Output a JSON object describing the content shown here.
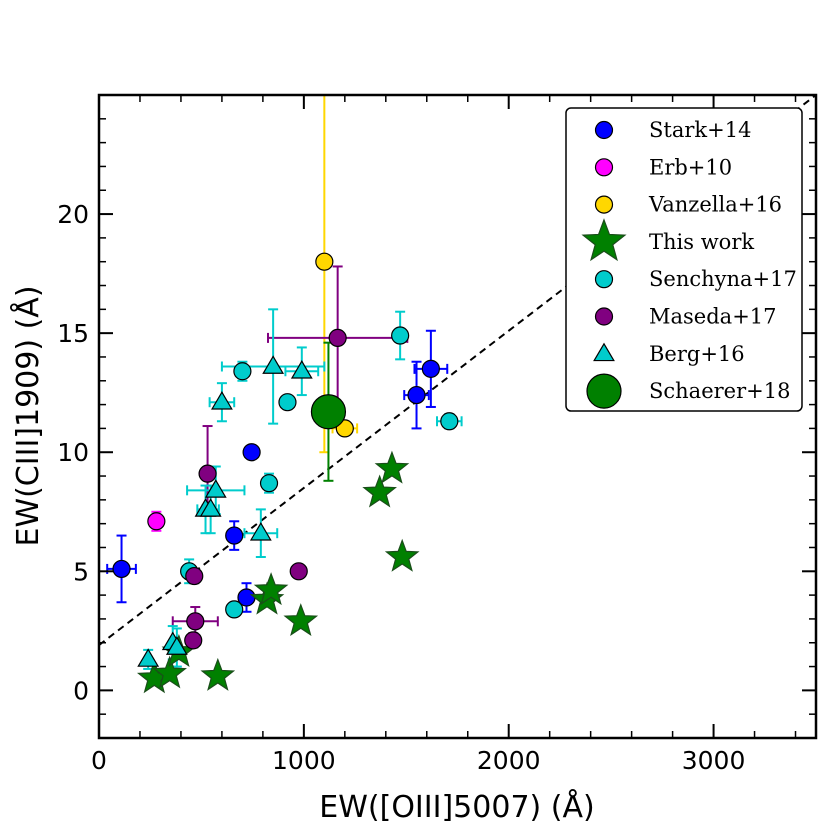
{
  "chart_data": {
    "type": "scatter",
    "xlabel": "EW([OIII]5007) (Å)",
    "ylabel": "EW(CIII]1909) (Å)",
    "xlim": [
      0,
      3500
    ],
    "ylim": [
      -2,
      25
    ],
    "xticks": [
      0,
      1000,
      2000,
      3000
    ],
    "xtick_labels": [
      "0",
      "1000",
      "2000",
      "3000"
    ],
    "yticks": [
      0,
      5,
      10,
      15,
      20
    ],
    "ytick_labels": [
      "0",
      "5",
      "10",
      "15",
      "20"
    ],
    "legend_position": "top-right",
    "reference_line": {
      "style": "dashed",
      "color": "#000000",
      "points": [
        [
          0,
          1.9
        ],
        [
          3500,
          25
        ]
      ]
    },
    "series": [
      {
        "name": "Stark+14",
        "marker": "circle",
        "color": "#0000ff",
        "errcolor": "#0000ff",
        "size": 17,
        "points": [
          {
            "x": 110,
            "y": 5.1,
            "xerr": 70,
            "yerr": [
              1.4,
              1.4
            ]
          },
          {
            "x": 660,
            "y": 6.5,
            "xerr": 0,
            "yerr": [
              0.6,
              0.6
            ]
          },
          {
            "x": 720,
            "y": 3.9,
            "xerr": 0,
            "yerr": [
              0.6,
              0.6
            ]
          },
          {
            "x": 745,
            "y": 10.0,
            "xerr": 0,
            "yerr": [
              0,
              0
            ]
          },
          {
            "x": 1550,
            "y": 12.4,
            "xerr": 60,
            "yerr": [
              1.4,
              1.4
            ]
          },
          {
            "x": 1620,
            "y": 13.5,
            "xerr": 80,
            "yerr": [
              1.6,
              1.6
            ]
          }
        ]
      },
      {
        "name": "Erb+10",
        "marker": "circle",
        "color": "#ff00ff",
        "errcolor": "#ff00ff",
        "size": 17,
        "points": [
          {
            "x": 280,
            "y": 7.1,
            "xerr": 0,
            "yerr": [
              0.4,
              0.4
            ]
          }
        ]
      },
      {
        "name": "Vanzella+16",
        "marker": "circle",
        "color": "#ffd700",
        "errcolor": "#ffd700",
        "size": 17,
        "points": [
          {
            "x": 1100,
            "y": 18.0,
            "xerr": 0,
            "yerr": [
              8.0,
              12.5
            ]
          },
          {
            "x": 1200,
            "y": 11.0,
            "xerr": 60,
            "yerr": [
              0,
              0
            ]
          }
        ]
      },
      {
        "name": "This work",
        "marker": "star",
        "color": "#008000",
        "errcolor": "#008000",
        "size": 30,
        "points": [
          {
            "x": 270,
            "y": 0.5,
            "xerr": 0,
            "yerr": [
              0,
              0
            ]
          },
          {
            "x": 345,
            "y": 0.7,
            "xerr": 0,
            "yerr": [
              0,
              0
            ]
          },
          {
            "x": 390,
            "y": 1.6,
            "xerr": 0,
            "yerr": [
              0,
              0
            ]
          },
          {
            "x": 580,
            "y": 0.6,
            "xerr": 0,
            "yerr": [
              0,
              0
            ]
          },
          {
            "x": 820,
            "y": 3.8,
            "xerr": 0,
            "yerr": [
              0,
              0
            ]
          },
          {
            "x": 840,
            "y": 4.2,
            "xerr": 0,
            "yerr": [
              0,
              0
            ]
          },
          {
            "x": 985,
            "y": 2.9,
            "xerr": 0,
            "yerr": [
              0,
              0
            ]
          },
          {
            "x": 1370,
            "y": 8.3,
            "xerr": 0,
            "yerr": [
              0,
              0
            ]
          },
          {
            "x": 1430,
            "y": 9.3,
            "xerr": 0,
            "yerr": [
              0,
              0
            ]
          },
          {
            "x": 1480,
            "y": 5.6,
            "xerr": 0,
            "yerr": [
              0,
              0
            ]
          }
        ]
      },
      {
        "name": "Senchyna+17",
        "marker": "circle",
        "color": "#00cccc",
        "errcolor": "#00cccc",
        "size": 17,
        "points": [
          {
            "x": 440,
            "y": 5.0,
            "xerr": 0,
            "yerr": [
              0.5,
              0.5
            ]
          },
          {
            "x": 660,
            "y": 3.4,
            "xerr": 0,
            "yerr": [
              0,
              0
            ]
          },
          {
            "x": 700,
            "y": 13.4,
            "xerr": 30,
            "yerr": [
              0.4,
              0.4
            ]
          },
          {
            "x": 830,
            "y": 8.7,
            "xerr": 0,
            "yerr": [
              0.4,
              0.4
            ]
          },
          {
            "x": 920,
            "y": 12.1,
            "xerr": 0,
            "yerr": [
              0,
              0
            ]
          },
          {
            "x": 1470,
            "y": 14.9,
            "xerr": 0,
            "yerr": [
              1.0,
              1.0
            ]
          },
          {
            "x": 1710,
            "y": 11.3,
            "xerr": 60,
            "yerr": [
              0.3,
              0.3
            ]
          }
        ]
      },
      {
        "name": "Maseda+17",
        "marker": "circle",
        "color": "#800080",
        "errcolor": "#800080",
        "size": 17,
        "points": [
          {
            "x": 460,
            "y": 2.1,
            "xerr": 0,
            "yerr": [
              0.3,
              0.3
            ]
          },
          {
            "x": 465,
            "y": 4.8,
            "xerr": 30,
            "yerr": [
              0.3,
              0.3
            ]
          },
          {
            "x": 470,
            "y": 2.9,
            "xerr": 110,
            "yerr": [
              0.6,
              0.6
            ]
          },
          {
            "x": 530,
            "y": 9.1,
            "xerr": 0,
            "yerr": [
              1.7,
              2.0
            ]
          },
          {
            "x": 975,
            "y": 5.0,
            "xerr": 20,
            "yerr": [
              0,
              0
            ]
          },
          {
            "x": 1165,
            "y": 14.8,
            "xerr": 340,
            "yerr": [
              3.0,
              3.0
            ]
          }
        ]
      },
      {
        "name": "Berg+16",
        "marker": "triangle",
        "color": "#00cccc",
        "errcolor": "#00cccc",
        "size": 17,
        "points": [
          {
            "x": 240,
            "y": 1.3,
            "xerr": 0,
            "yerr": [
              0.4,
              0.4
            ]
          },
          {
            "x": 360,
            "y": 2.0,
            "xerr": 0,
            "yerr": [
              0.7,
              0.7
            ]
          },
          {
            "x": 380,
            "y": 1.8,
            "xerr": 0,
            "yerr": [
              0.8,
              0.8
            ]
          },
          {
            "x": 520,
            "y": 7.6,
            "xerr": 40,
            "yerr": [
              1.0,
              1.0
            ]
          },
          {
            "x": 545,
            "y": 7.6,
            "xerr": 40,
            "yerr": [
              1.0,
              1.0
            ]
          },
          {
            "x": 570,
            "y": 8.4,
            "xerr": 140,
            "yerr": [
              1.0,
              1.0
            ]
          },
          {
            "x": 600,
            "y": 12.1,
            "xerr": 60,
            "yerr": [
              0.8,
              0.8
            ]
          },
          {
            "x": 790,
            "y": 6.6,
            "xerr": 80,
            "yerr": [
              1.0,
              1.0
            ]
          },
          {
            "x": 850,
            "y": 13.6,
            "xerr": 250,
            "yerr": [
              2.4,
              2.4
            ]
          },
          {
            "x": 990,
            "y": 13.4,
            "xerr": 80,
            "yerr": [
              1.0,
              1.0
            ]
          }
        ]
      },
      {
        "name": "Schaerer+18",
        "marker": "circle",
        "color": "#008000",
        "errcolor": "#008000",
        "size": 34,
        "points": [
          {
            "x": 1120,
            "y": 11.7,
            "xerr": 0,
            "yerr": [
              2.9,
              2.9
            ]
          }
        ]
      }
    ]
  }
}
